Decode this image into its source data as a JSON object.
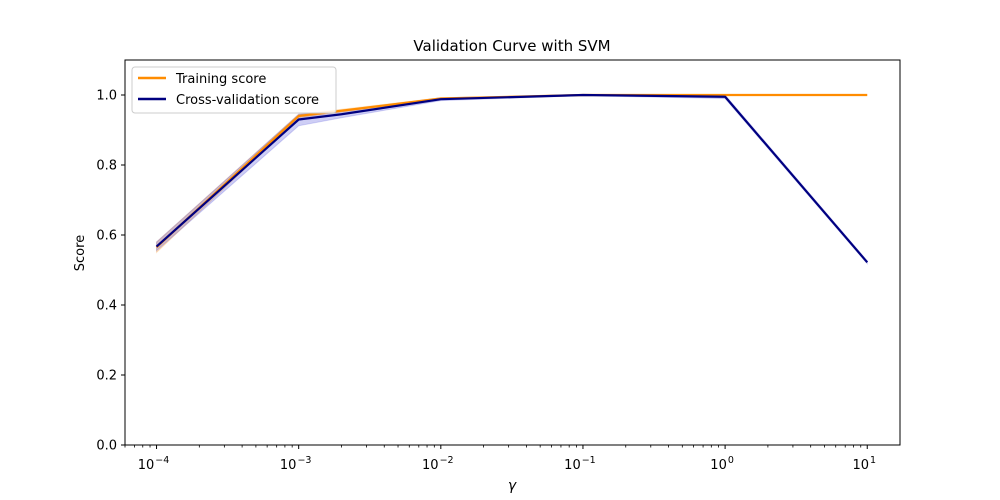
{
  "chart_data": {
    "type": "line",
    "title": "Validation Curve with SVM",
    "xlabel": "γ",
    "ylabel": "Score",
    "x_scale": "log",
    "x_tick_exponents": [
      -4,
      -3,
      -2,
      -1,
      0,
      1
    ],
    "xlim": [
      6e-05,
      17
    ],
    "ylim": [
      0.0,
      1.1
    ],
    "y_ticks": [
      0.0,
      0.2,
      0.4,
      0.6,
      0.8,
      1.0
    ],
    "y_tick_labels": [
      "0.0",
      "0.2",
      "0.4",
      "0.6",
      "0.8",
      "1.0"
    ],
    "legend_position": "top-left",
    "grid": false,
    "series": [
      {
        "name": "Training score",
        "color": "#ff8c00",
        "band_color": "#ff8c00",
        "x": [
          0.0001,
          0.001,
          0.01,
          0.1,
          1,
          10
        ],
        "values": [
          0.565,
          0.94,
          0.99,
          1.0,
          1.0,
          1.0
        ],
        "band_low": [
          0.55,
          0.935,
          0.988,
          1.0,
          1.0,
          1.0
        ],
        "band_high": [
          0.58,
          0.945,
          0.992,
          1.0,
          1.0,
          1.0
        ]
      },
      {
        "name": "Cross-validation score",
        "color": "#000080",
        "band_color": "#3d3dd9",
        "x": [
          0.0001,
          0.001,
          0.002,
          0.01,
          0.1,
          1,
          10
        ],
        "values": [
          0.567,
          0.93,
          0.945,
          0.988,
          1.0,
          0.995,
          0.522
        ],
        "band_low": [
          0.555,
          0.912,
          0.935,
          0.984,
          0.998,
          0.99,
          0.518
        ],
        "band_high": [
          0.58,
          0.945,
          0.955,
          0.992,
          1.0,
          1.0,
          0.526
        ]
      }
    ]
  }
}
